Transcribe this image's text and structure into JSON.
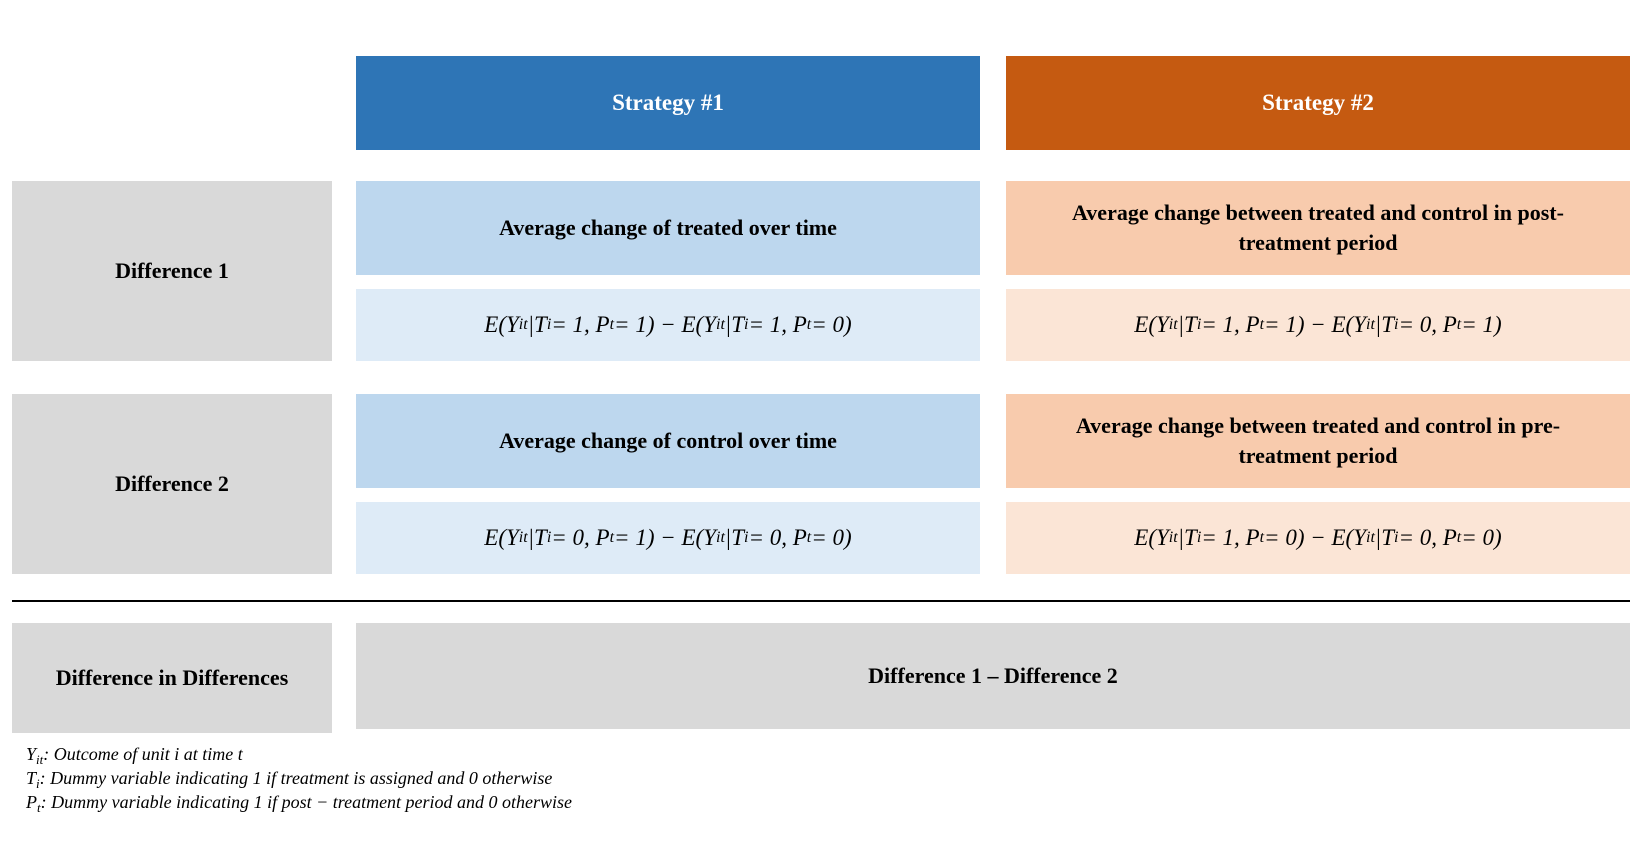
{
  "headers": {
    "strategy1": "Strategy #1",
    "strategy2": "Strategy #2"
  },
  "rows": {
    "difference1": {
      "label": "Difference 1",
      "s1_desc": "Average change of treated over time",
      "s2_desc": "Average change between treated and control in post-treatment period",
      "s1_eq": "E(Y_it|T_i = 1, P_t = 1) − E(Y_it|T_i = 1, P_t = 0)",
      "s2_eq": "E(Y_it|T_i = 1, P_t = 1) − E(Y_it|T_i = 0, P_t = 1)"
    },
    "difference2": {
      "label": "Difference 2",
      "s1_desc": "Average change of control over time",
      "s2_desc": "Average change between treated and control in pre-treatment period",
      "s1_eq": "E(Y_it|T_i = 0, P_t = 1) − E(Y_it|T_i = 0, P_t = 0)",
      "s2_eq": "E(Y_it|T_i = 1, P_t = 0) − E(Y_it|T_i = 0, P_t = 0)"
    }
  },
  "did": {
    "label": "Difference in Differences",
    "formula": "Difference 1 – Difference 2"
  },
  "notes": {
    "y": "Y_it: Outcome of unit i at time t",
    "t": "T_i: Dummy variable indicating 1 if treatment is assigned and 0 otherwise",
    "p": "P_t: Dummy variable indicating 1 if post − treatment period and 0 otherwise"
  },
  "colors": {
    "strategy1_header": "#2e75b6",
    "strategy2_header": "#c55a11",
    "blue_dark": "#bdd7ee",
    "blue_light": "#deebf7",
    "orange_dark": "#f8cbad",
    "orange_light": "#fbe5d6",
    "grey": "#d9d9d9"
  }
}
